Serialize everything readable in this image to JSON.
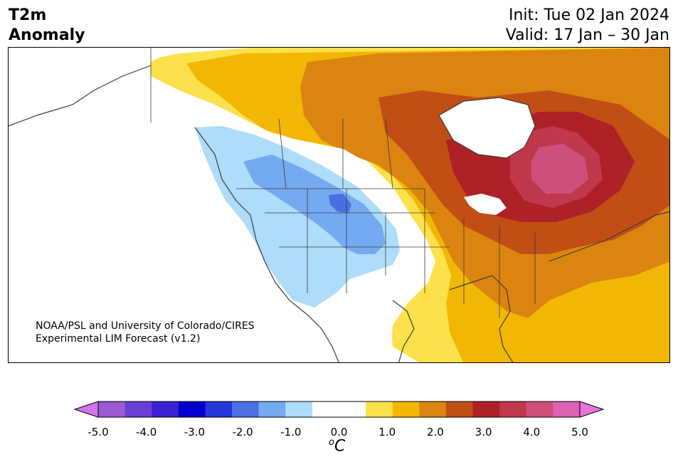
{
  "title": {
    "variable_line1": "T2m",
    "variable_line2": "Anomaly",
    "init": "Init: Tue 02 Jan 2024",
    "valid": "Valid: 17 Jan – 30 Jan"
  },
  "credit": {
    "line1": "NOAA/PSL and University of Colorado/CIRES",
    "line2": "Experimental LIM Forecast (v1.2)"
  },
  "colorbar": {
    "unit_base": "C",
    "unit_prefix": "o",
    "tick_labels": [
      "-5.0",
      "-4.0",
      "-3.0",
      "-2.0",
      "-1.0",
      "0.0",
      "1.0",
      "2.0",
      "3.0",
      "4.0",
      "5.0"
    ],
    "colors": [
      "#9b59d4",
      "#6a3fd6",
      "#3a22cf",
      "#0000cd",
      "#2437d8",
      "#4b6fe3",
      "#74aaf0",
      "#aedcfb",
      "#ffffff",
      "#ffffff",
      "#fde14c",
      "#f2b705",
      "#db8410",
      "#c14e15",
      "#ad2127",
      "#c0384c",
      "#cf4f7c",
      "#de61b4"
    ],
    "under_color": "#d475e8",
    "over_color": "#e775d8"
  },
  "map_colors": {
    "anom_pos_05": "#fde14c",
    "anom_pos_10": "#f2b705",
    "anom_pos_15": "#db8410",
    "anom_pos_20": "#c14e15",
    "anom_pos_25": "#ad2127",
    "anom_pos_30": "#c0384c",
    "anom_pos_35": "#cf4f7c",
    "anom_neg_05": "#aedcfb",
    "anom_neg_10": "#74aaf0",
    "anom_neg_15": "#4b6fe3",
    "coastline": "#3a3a3a"
  }
}
